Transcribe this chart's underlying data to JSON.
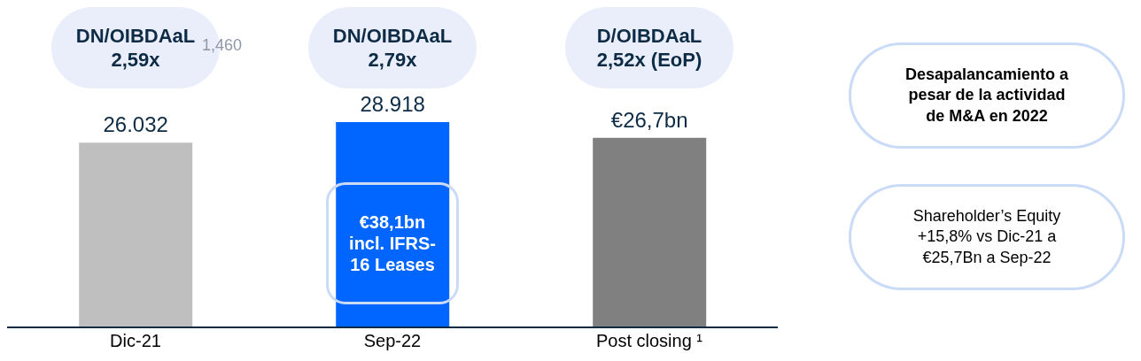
{
  "chart_data": {
    "type": "bar",
    "categories": [
      "Dic-21",
      "Sep-22",
      "Post closing ¹"
    ],
    "values": [
      26.032,
      28.918,
      26.7
    ],
    "colors": [
      "#bfbfbf",
      "#0066ff",
      "#808080"
    ],
    "value_labels": [
      "26.032",
      "28.918",
      "€26,7bn"
    ],
    "annotations": [
      "DN/OIBDAaL\n2,59x",
      "DN/OIBDAaL\n2,79x",
      "D/OIBDAaL\n2,52x (EoP)",
      "1,460",
      "€38,1bn\nincl. IFRS-\n16 Leases",
      "Desapalancamiento a\npesar de la actividad\nde M&A en 2022",
      "Shareholder’s Equity\n+15,8% vs Dic-21 a\n€25,7Bn a Sep-22"
    ]
  }
}
